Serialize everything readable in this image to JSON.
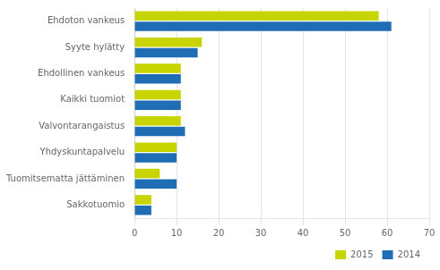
{
  "chart_data": {
    "type": "bar",
    "orientation": "horizontal",
    "categories": [
      "Ehdoton vankeus",
      "Syyte hylätty",
      "Ehdollinen vankeus",
      "Kaikki tuomiot",
      "Valvontarangaistus",
      "Yhdyskuntapalvelu",
      "Tuomitsematta jättäminen",
      "Sakkotuomio"
    ],
    "series": [
      {
        "name": "2015",
        "color": "#c8d400",
        "values": [
          58,
          16,
          11,
          11,
          11,
          10,
          6,
          4
        ]
      },
      {
        "name": "2014",
        "color": "#1f6eb5",
        "values": [
          61,
          15,
          11,
          11,
          12,
          10,
          10,
          4
        ]
      }
    ],
    "xlim": [
      0,
      70
    ],
    "xticks": [
      0,
      10,
      20,
      30,
      40,
      50,
      60,
      70
    ],
    "grid": true,
    "legend": "lower right"
  }
}
